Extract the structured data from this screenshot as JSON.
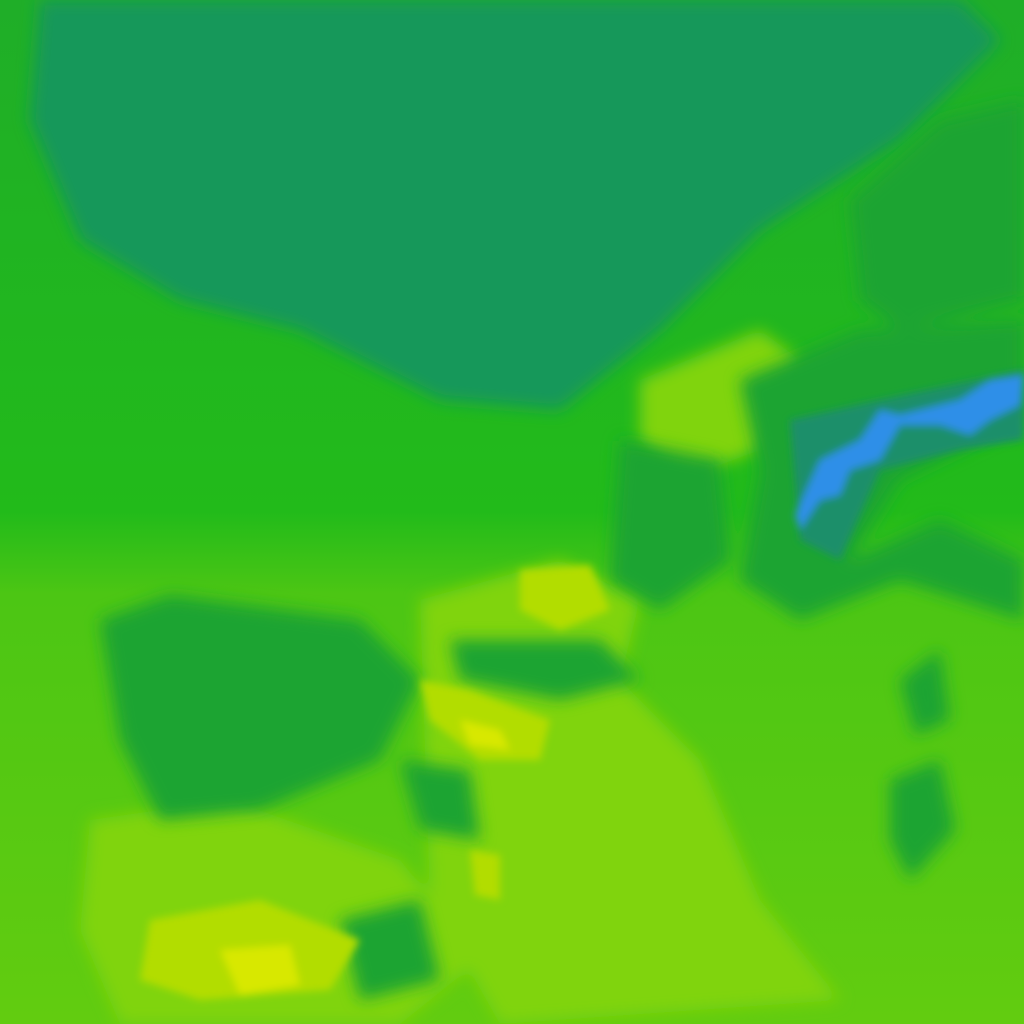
{
  "map": {
    "type": "raster-tile",
    "palette": {
      "deep_green": "#13985a",
      "dark_green": "#1aa432",
      "green": "#22bb1a",
      "light_green": "#52c812",
      "lime": "#80d40a",
      "yellow_green": "#b2dd06",
      "yellow": "#d8e800",
      "blue": "#2f8fe8",
      "teal": "#1a8f6a"
    }
  }
}
